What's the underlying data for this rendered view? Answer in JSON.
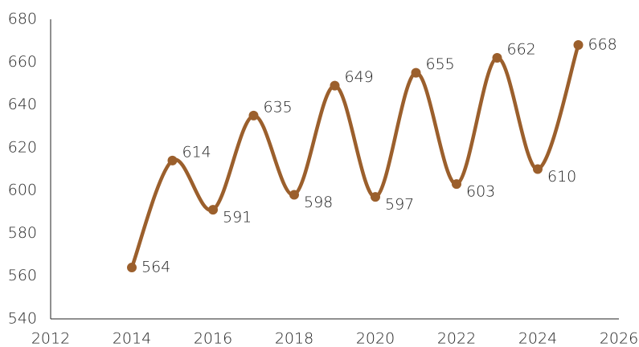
{
  "chart_data": {
    "type": "line",
    "x": [
      2014,
      2015,
      2016,
      2017,
      2018,
      2019,
      2020,
      2021,
      2022,
      2023,
      2024,
      2025
    ],
    "values": [
      564,
      614,
      591,
      635,
      598,
      649,
      597,
      655,
      603,
      662,
      610,
      668
    ],
    "color": "#9b5f2c",
    "xlim": [
      2012,
      2026
    ],
    "xticks": [
      2012,
      2014,
      2016,
      2018,
      2020,
      2022,
      2024,
      2026
    ],
    "ylim": [
      540,
      680
    ],
    "yticks": [
      540,
      560,
      580,
      600,
      620,
      640,
      660,
      680
    ],
    "grid": false,
    "smooth": true
  }
}
